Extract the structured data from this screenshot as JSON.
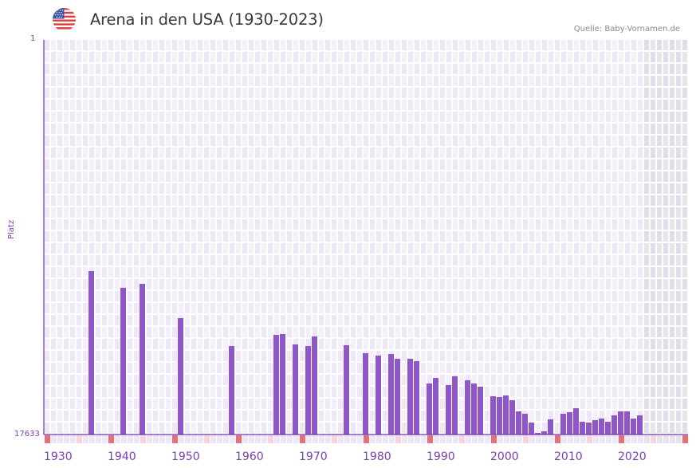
{
  "header": {
    "title": "Arena in den USA (1930-2023)",
    "source": "Quelle: Baby-Vornamen.de",
    "flag_icon": "us-flag-icon"
  },
  "colors": {
    "bar": "#8e56c7",
    "axis": "#6a2fa5",
    "grid_cell_a": "#ede7f8",
    "grid_cell_b": "#f3effb",
    "future_cell_a": "#e2dcec",
    "future_cell_b": "#e8e4ee",
    "decade_marker": "#e57079",
    "half_decade_marker": "#f5d5de"
  },
  "chart_data": {
    "type": "bar",
    "title": "Arena in den USA (1930-2023)",
    "xlabel": "",
    "ylabel": "Platz",
    "y_inverted": true,
    "ylim": [
      1,
      17633
    ],
    "ytick_labels": [
      "1",
      "17633"
    ],
    "xlim": [
      1930,
      2030
    ],
    "last_data_year": 2023,
    "xtick_labels": [
      "1930",
      "1940",
      "1950",
      "1960",
      "1970",
      "1980",
      "1990",
      "2000",
      "2010",
      "2020"
    ],
    "grid": true,
    "legend": "none",
    "series": [
      {
        "name": "Platz",
        "x": [
          1937,
          1942,
          1945,
          1951,
          1959,
          1966,
          1967,
          1969,
          1971,
          1972,
          1977,
          1980,
          1982,
          1984,
          1985,
          1987,
          1988,
          1990,
          1991,
          1993,
          1994,
          1996,
          1997,
          1998,
          2000,
          2001,
          2002,
          2003,
          2004,
          2005,
          2006,
          2007,
          2008,
          2009,
          2011,
          2012,
          2013,
          2014,
          2015,
          2016,
          2017,
          2018,
          2019,
          2020,
          2021,
          2022,
          2023
        ],
        "values": [
          10331,
          11079,
          10901,
          12433,
          13680,
          13181,
          13145,
          13608,
          13680,
          13252,
          13644,
          13999,
          14106,
          14035,
          14249,
          14249,
          14356,
          15353,
          15104,
          15424,
          15032,
          15210,
          15353,
          15495,
          15923,
          15959,
          15887,
          16101,
          16600,
          16706,
          17098,
          17561,
          17490,
          16956,
          16706,
          16635,
          16457,
          17062,
          17098,
          16991,
          16920,
          17062,
          16777,
          16600,
          16600,
          16920,
          16777
        ]
      }
    ]
  }
}
